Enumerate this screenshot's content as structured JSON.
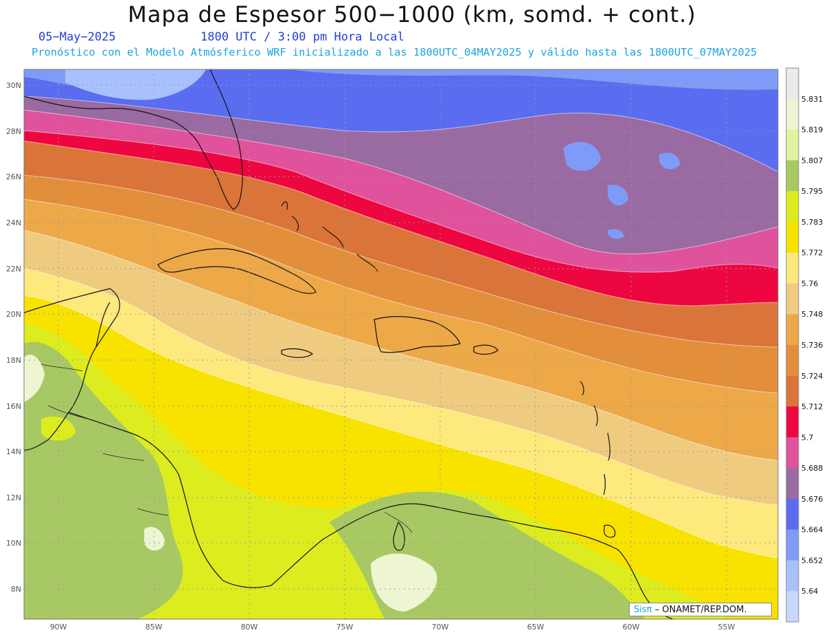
{
  "header": {
    "title": "Mapa de Espesor 500−1000 (km, somd. + cont.)",
    "date": "05−May−2025",
    "time": "1800 UTC / 3:00 pm Hora Local",
    "subtitle": "Pronóstico con el Modelo Atmósferico WRF inicializado a las 1800UTC_04MAY2025 y válido hasta las  1800UTC_07MAY2025"
  },
  "axes": {
    "lat_labels": [
      "30N",
      "28N",
      "26N",
      "24N",
      "22N",
      "20N",
      "18N",
      "16N",
      "14N",
      "12N",
      "10N",
      "8N"
    ],
    "lon_labels": [
      "90W",
      "85W",
      "80W",
      "75W",
      "70W",
      "65W",
      "60W",
      "55W"
    ]
  },
  "colorbar": {
    "labels": [
      "5.831",
      "5.819",
      "5.807",
      "5.795",
      "5.783",
      "5.772",
      "5.76",
      "5.748",
      "5.736",
      "5.724",
      "5.712",
      "5.7",
      "5.688",
      "5.676",
      "5.664",
      "5.652",
      "5.64"
    ],
    "colors": [
      "#ebebeb",
      "#eef5d2",
      "#dff4a0",
      "#a8c864",
      "#dcec1e",
      "#f7e200",
      "#fde97c",
      "#efcb80",
      "#eda848",
      "#e28e3a",
      "#db7438",
      "#ee0640",
      "#e0529c",
      "#9a6aa2",
      "#5a6cf0",
      "#7e9cf7",
      "#a8c0fc",
      "#c8d8fd"
    ]
  },
  "credit": {
    "logo": "Sisπ",
    "org": " – ONAMET/REP.DOM."
  }
}
